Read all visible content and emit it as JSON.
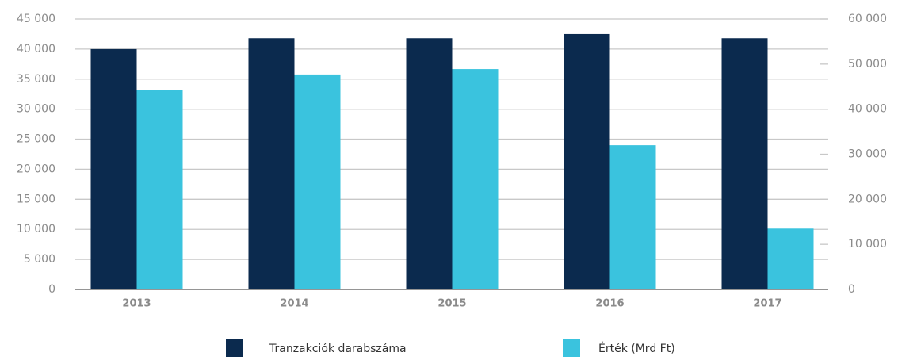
{
  "chart_data": {
    "type": "bar",
    "categories": [
      "2013",
      "2014",
      "2015",
      "2016",
      "2017"
    ],
    "series": [
      {
        "name": "Tranzakciók darabszáma",
        "color": "#0b2a4e",
        "values": [
          40000,
          41800,
          41800,
          42500,
          41800
        ]
      },
      {
        "name": "Érték (Mrd Ft)",
        "color": "#3ac3de",
        "axis": "y2",
        "values": [
          44300,
          47700,
          48900,
          32000,
          13500
        ]
      }
    ],
    "ylim": [
      0,
      45000
    ],
    "yticks": [
      0,
      {
        "value": 5000,
        "label": "5 000"
      },
      {
        "value": 10000,
        "label": "10 000"
      },
      {
        "value": 15000,
        "label": "15 000"
      },
      {
        "value": 20000,
        "label": "20 000"
      },
      {
        "value": 25000,
        "label": "25 000"
      },
      {
        "value": 30000,
        "label": "30 000"
      },
      {
        "value": 35000,
        "label": "35 000"
      },
      {
        "value": 40000,
        "label": "40 000"
      },
      {
        "value": 45000,
        "label": "45 000"
      }
    ],
    "y2lim": [
      0,
      60000
    ],
    "y2ticks": [
      0,
      {
        "value": 10000,
        "label": "10 000"
      },
      {
        "value": 20000,
        "label": "20 000"
      },
      {
        "value": 30000,
        "label": "30 000"
      },
      {
        "value": 40000,
        "label": "40 000"
      },
      {
        "value": 50000,
        "label": "50 000"
      },
      {
        "value": 60000,
        "label": "60 000"
      }
    ],
    "grid": true,
    "legend": "bottom"
  }
}
